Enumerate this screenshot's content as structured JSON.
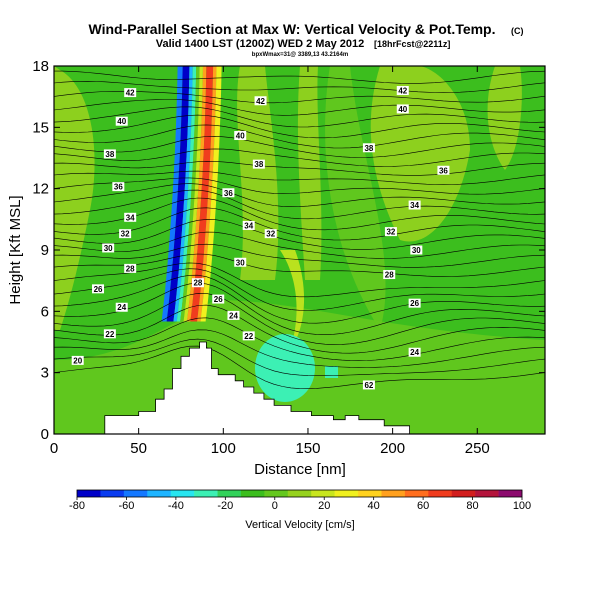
{
  "chart_data": {
    "type": "heatmap",
    "title": "Wind-Parallel Section at Max W: Vertical Velocity & Pot.Temp.",
    "title_unit": "(C)",
    "subtitle": "Valid 1400 LST (1200Z) WED 2 May 2012",
    "subtitle_tag": "[18hrFcst@2211z]",
    "subtitle2": "bpxWmax=31@ 3389,13 43.2164m",
    "xlabel": "Distance [nm]",
    "ylabel": "Height [Kft MSL]",
    "xlim": [
      0,
      290
    ],
    "ylim": [
      0,
      18
    ],
    "xticks": [
      0,
      50,
      100,
      150,
      200,
      250
    ],
    "yticks": [
      0,
      3,
      6,
      9,
      12,
      15,
      18
    ],
    "colorbar": {
      "label": "Vertical Velocity [cm/s]",
      "ticks": [
        -80,
        -60,
        -40,
        -20,
        0,
        20,
        40,
        60,
        80,
        100
      ],
      "colors": [
        "#0000c8",
        "#0a3cf0",
        "#1478ff",
        "#1eb4ff",
        "#28e6f0",
        "#3cf0b4",
        "#32d25a",
        "#3cbe1e",
        "#64c81e",
        "#96d21e",
        "#c8e61e",
        "#f0f01e",
        "#ffd21e",
        "#ffa01e",
        "#ff6e1e",
        "#f03c1e",
        "#d21e1e",
        "#b4143c",
        "#8c0a6e"
      ]
    },
    "vertical_velocity_bands": [
      {
        "x": [
          76,
          80
        ],
        "w_cm_s": -80
      },
      {
        "x": [
          80,
          84
        ],
        "w_cm_s": -40
      },
      {
        "x": [
          84,
          88
        ],
        "w_cm_s": 0
      },
      {
        "x": [
          88,
          94
        ],
        "w_cm_s": 60
      },
      {
        "x": [
          94,
          99
        ],
        "w_cm_s": 40
      }
    ],
    "theta_contours_c": [
      20,
      22,
      24,
      26,
      28,
      30,
      32,
      34,
      36,
      38,
      40,
      42
    ],
    "contour_labels": [
      {
        "text": "42",
        "x": 45,
        "y": 16.7
      },
      {
        "text": "40",
        "x": 40,
        "y": 15.3
      },
      {
        "text": "38",
        "x": 33,
        "y": 13.7
      },
      {
        "text": "36",
        "x": 38,
        "y": 12.1
      },
      {
        "text": "34",
        "x": 45,
        "y": 10.6
      },
      {
        "text": "32",
        "x": 42,
        "y": 9.8
      },
      {
        "text": "30",
        "x": 32,
        "y": 9.1
      },
      {
        "text": "28",
        "x": 45,
        "y": 8.1
      },
      {
        "text": "26",
        "x": 26,
        "y": 7.1
      },
      {
        "text": "24",
        "x": 40,
        "y": 6.2
      },
      {
        "text": "22",
        "x": 33,
        "y": 4.9
      },
      {
        "text": "20",
        "x": 14,
        "y": 3.6
      },
      {
        "text": "42",
        "x": 122,
        "y": 16.3
      },
      {
        "text": "40",
        "x": 110,
        "y": 14.6
      },
      {
        "text": "38",
        "x": 121,
        "y": 13.2
      },
      {
        "text": "36",
        "x": 103,
        "y": 11.8
      },
      {
        "text": "34",
        "x": 115,
        "y": 10.2
      },
      {
        "text": "32",
        "x": 128,
        "y": 9.8
      },
      {
        "text": "30",
        "x": 110,
        "y": 8.4
      },
      {
        "text": "28",
        "x": 85,
        "y": 7.4
      },
      {
        "text": "26",
        "x": 97,
        "y": 6.6
      },
      {
        "text": "24",
        "x": 106,
        "y": 5.8
      },
      {
        "text": "22",
        "x": 115,
        "y": 4.8
      },
      {
        "text": "42",
        "x": 206,
        "y": 16.8
      },
      {
        "text": "40",
        "x": 206,
        "y": 15.9
      },
      {
        "text": "38",
        "x": 186,
        "y": 14.0
      },
      {
        "text": "36",
        "x": 230,
        "y": 12.9
      },
      {
        "text": "34",
        "x": 213,
        "y": 11.2
      },
      {
        "text": "32",
        "x": 199,
        "y": 9.9
      },
      {
        "text": "30",
        "x": 214,
        "y": 9.0
      },
      {
        "text": "28",
        "x": 198,
        "y": 7.8
      },
      {
        "text": "26",
        "x": 213,
        "y": 6.4
      },
      {
        "text": "24",
        "x": 213,
        "y": 4.0
      },
      {
        "text": "62",
        "x": 186,
        "y": 2.4
      }
    ],
    "terrain": {
      "x": [
        0,
        30,
        30,
        50,
        50,
        60,
        60,
        65,
        65,
        70,
        70,
        75,
        75,
        80,
        80,
        86,
        86,
        90,
        90,
        93,
        93,
        97,
        97,
        107,
        107,
        112,
        112,
        118,
        118,
        124,
        124,
        130,
        130,
        140,
        140,
        152,
        152,
        165,
        165,
        172,
        172,
        180,
        180,
        195,
        195,
        210,
        210,
        290
      ],
      "y": [
        0,
        0,
        0.9,
        0.9,
        1.1,
        1.1,
        1.7,
        1.7,
        2.2,
        2.2,
        3.2,
        3.2,
        3.8,
        3.8,
        4.2,
        4.2,
        4.5,
        4.5,
        4.2,
        4.2,
        3.2,
        3.2,
        2.9,
        2.9,
        2.6,
        2.6,
        2.3,
        2.3,
        2.0,
        2.0,
        1.7,
        1.7,
        1.4,
        1.4,
        1.1,
        1.1,
        0.9,
        0.9,
        0.7,
        0.7,
        0.9,
        0.9,
        0.7,
        0.7,
        0.4,
        0.4,
        0,
        0
      ]
    }
  }
}
